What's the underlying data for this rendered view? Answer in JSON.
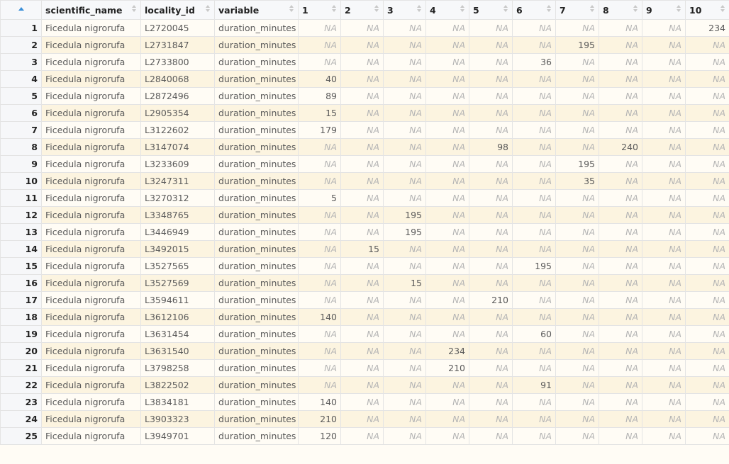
{
  "table": {
    "columns": [
      "",
      "scientific_name",
      "locality_id",
      "variable",
      "1",
      "2",
      "3",
      "4",
      "5",
      "6",
      "7",
      "8",
      "9",
      "10"
    ],
    "na_label": "NA",
    "rows": [
      {
        "idx": "1",
        "scientific_name": "Ficedula nigrorufa",
        "locality_id": "L2720045",
        "variable": "duration_minutes",
        "values": [
          null,
          null,
          null,
          null,
          null,
          null,
          null,
          null,
          null,
          "234"
        ]
      },
      {
        "idx": "2",
        "scientific_name": "Ficedula nigrorufa",
        "locality_id": "L2731847",
        "variable": "duration_minutes",
        "values": [
          null,
          null,
          null,
          null,
          null,
          null,
          "195",
          null,
          null,
          null
        ]
      },
      {
        "idx": "3",
        "scientific_name": "Ficedula nigrorufa",
        "locality_id": "L2733800",
        "variable": "duration_minutes",
        "values": [
          null,
          null,
          null,
          null,
          null,
          "36",
          null,
          null,
          null,
          null
        ]
      },
      {
        "idx": "4",
        "scientific_name": "Ficedula nigrorufa",
        "locality_id": "L2840068",
        "variable": "duration_minutes",
        "values": [
          "40",
          null,
          null,
          null,
          null,
          null,
          null,
          null,
          null,
          null
        ]
      },
      {
        "idx": "5",
        "scientific_name": "Ficedula nigrorufa",
        "locality_id": "L2872496",
        "variable": "duration_minutes",
        "values": [
          "89",
          null,
          null,
          null,
          null,
          null,
          null,
          null,
          null,
          null
        ]
      },
      {
        "idx": "6",
        "scientific_name": "Ficedula nigrorufa",
        "locality_id": "L2905354",
        "variable": "duration_minutes",
        "values": [
          "15",
          null,
          null,
          null,
          null,
          null,
          null,
          null,
          null,
          null
        ]
      },
      {
        "idx": "7",
        "scientific_name": "Ficedula nigrorufa",
        "locality_id": "L3122602",
        "variable": "duration_minutes",
        "values": [
          "179",
          null,
          null,
          null,
          null,
          null,
          null,
          null,
          null,
          null
        ]
      },
      {
        "idx": "8",
        "scientific_name": "Ficedula nigrorufa",
        "locality_id": "L3147074",
        "variable": "duration_minutes",
        "values": [
          null,
          null,
          null,
          null,
          "98",
          null,
          null,
          "240",
          null,
          null
        ]
      },
      {
        "idx": "9",
        "scientific_name": "Ficedula nigrorufa",
        "locality_id": "L3233609",
        "variable": "duration_minutes",
        "values": [
          null,
          null,
          null,
          null,
          null,
          null,
          "195",
          null,
          null,
          null
        ]
      },
      {
        "idx": "10",
        "scientific_name": "Ficedula nigrorufa",
        "locality_id": "L3247311",
        "variable": "duration_minutes",
        "values": [
          null,
          null,
          null,
          null,
          null,
          null,
          "35",
          null,
          null,
          null
        ]
      },
      {
        "idx": "11",
        "scientific_name": "Ficedula nigrorufa",
        "locality_id": "L3270312",
        "variable": "duration_minutes",
        "values": [
          "5",
          null,
          null,
          null,
          null,
          null,
          null,
          null,
          null,
          null
        ]
      },
      {
        "idx": "12",
        "scientific_name": "Ficedula nigrorufa",
        "locality_id": "L3348765",
        "variable": "duration_minutes",
        "values": [
          null,
          null,
          "195",
          null,
          null,
          null,
          null,
          null,
          null,
          null
        ]
      },
      {
        "idx": "13",
        "scientific_name": "Ficedula nigrorufa",
        "locality_id": "L3446949",
        "variable": "duration_minutes",
        "values": [
          null,
          null,
          "195",
          null,
          null,
          null,
          null,
          null,
          null,
          null
        ]
      },
      {
        "idx": "14",
        "scientific_name": "Ficedula nigrorufa",
        "locality_id": "L3492015",
        "variable": "duration_minutes",
        "values": [
          null,
          "15",
          null,
          null,
          null,
          null,
          null,
          null,
          null,
          null
        ]
      },
      {
        "idx": "15",
        "scientific_name": "Ficedula nigrorufa",
        "locality_id": "L3527565",
        "variable": "duration_minutes",
        "values": [
          null,
          null,
          null,
          null,
          null,
          "195",
          null,
          null,
          null,
          null
        ]
      },
      {
        "idx": "16",
        "scientific_name": "Ficedula nigrorufa",
        "locality_id": "L3527569",
        "variable": "duration_minutes",
        "values": [
          null,
          null,
          "15",
          null,
          null,
          null,
          null,
          null,
          null,
          null
        ]
      },
      {
        "idx": "17",
        "scientific_name": "Ficedula nigrorufa",
        "locality_id": "L3594611",
        "variable": "duration_minutes",
        "values": [
          null,
          null,
          null,
          null,
          "210",
          null,
          null,
          null,
          null,
          null
        ]
      },
      {
        "idx": "18",
        "scientific_name": "Ficedula nigrorufa",
        "locality_id": "L3612106",
        "variable": "duration_minutes",
        "values": [
          "140",
          null,
          null,
          null,
          null,
          null,
          null,
          null,
          null,
          null
        ]
      },
      {
        "idx": "19",
        "scientific_name": "Ficedula nigrorufa",
        "locality_id": "L3631454",
        "variable": "duration_minutes",
        "values": [
          null,
          null,
          null,
          null,
          null,
          "60",
          null,
          null,
          null,
          null
        ]
      },
      {
        "idx": "20",
        "scientific_name": "Ficedula nigrorufa",
        "locality_id": "L3631540",
        "variable": "duration_minutes",
        "values": [
          null,
          null,
          null,
          "234",
          null,
          null,
          null,
          null,
          null,
          null
        ]
      },
      {
        "idx": "21",
        "scientific_name": "Ficedula nigrorufa",
        "locality_id": "L3798258",
        "variable": "duration_minutes",
        "values": [
          null,
          null,
          null,
          "210",
          null,
          null,
          null,
          null,
          null,
          null
        ]
      },
      {
        "idx": "22",
        "scientific_name": "Ficedula nigrorufa",
        "locality_id": "L3822502",
        "variable": "duration_minutes",
        "values": [
          null,
          null,
          null,
          null,
          null,
          "91",
          null,
          null,
          null,
          null
        ]
      },
      {
        "idx": "23",
        "scientific_name": "Ficedula nigrorufa",
        "locality_id": "L3834181",
        "variable": "duration_minutes",
        "values": [
          "140",
          null,
          null,
          null,
          null,
          null,
          null,
          null,
          null,
          null
        ]
      },
      {
        "idx": "24",
        "scientific_name": "Ficedula nigrorufa",
        "locality_id": "L3903323",
        "variable": "duration_minutes",
        "values": [
          "210",
          null,
          null,
          null,
          null,
          null,
          null,
          null,
          null,
          null
        ]
      },
      {
        "idx": "25",
        "scientific_name": "Ficedula nigrorufa",
        "locality_id": "L3949701",
        "variable": "duration_minutes",
        "values": [
          "120",
          null,
          null,
          null,
          null,
          null,
          null,
          null,
          null,
          null
        ]
      }
    ]
  },
  "colors": {
    "sort_active": "#3a8fd8",
    "row_odd": "#fffcf5",
    "row_even": "#fcf4e0",
    "na_text": "#b5b5b5"
  }
}
